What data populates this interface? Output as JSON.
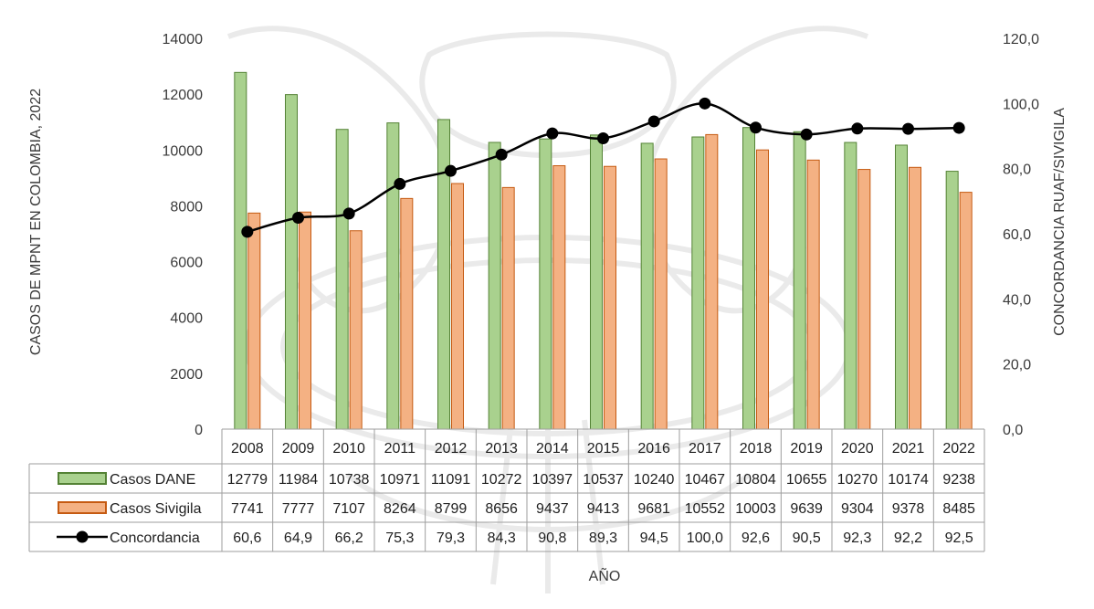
{
  "colors": {
    "dane_fill": "#A9D18E",
    "dane_stroke": "#548235",
    "sivigila_fill": "#F4B183",
    "sivigila_stroke": "#C55A11",
    "line": "#000000",
    "watermark": "#d9d9d9",
    "grid": "#9e9e9e"
  },
  "watermark": {
    "icon": "crest-watermark-icon"
  },
  "chart_data": {
    "type": "bar",
    "categories": [
      "2008",
      "2009",
      "2010",
      "2011",
      "2012",
      "2013",
      "2014",
      "2015",
      "2016",
      "2017",
      "2018",
      "2019",
      "2020",
      "2021",
      "2022"
    ],
    "series": [
      {
        "name": "Casos DANE",
        "kind": "bar",
        "axis": "left",
        "values": [
          12779,
          11984,
          10738,
          10971,
          11091,
          10272,
          10397,
          10537,
          10240,
          10467,
          10804,
          10655,
          10270,
          10174,
          9238
        ],
        "labels": [
          "12779",
          "11984",
          "10738",
          "10971",
          "11091",
          "10272",
          "10397",
          "10537",
          "10240",
          "10467",
          "10804",
          "10655",
          "10270",
          "10174",
          "9238"
        ]
      },
      {
        "name": "Casos Sivigila",
        "kind": "bar",
        "axis": "left",
        "values": [
          7741,
          7777,
          7107,
          8264,
          8799,
          8656,
          9437,
          9413,
          9681,
          10552,
          10003,
          9639,
          9304,
          9378,
          8485
        ],
        "labels": [
          "7741",
          "7777",
          "7107",
          "8264",
          "8799",
          "8656",
          "9437",
          "9413",
          "9681",
          "10552",
          "10003",
          "9639",
          "9304",
          "9378",
          "8485"
        ]
      },
      {
        "name": "Concordancia",
        "kind": "line",
        "axis": "right",
        "values": [
          60.6,
          64.9,
          66.2,
          75.3,
          79.3,
          84.3,
          90.8,
          89.3,
          94.5,
          100.0,
          92.6,
          90.5,
          92.3,
          92.2,
          92.5
        ],
        "labels": [
          "60,6",
          "64,9",
          "66,2",
          "75,3",
          "79,3",
          "84,3",
          "90,8",
          "89,3",
          "94,5",
          "100,0",
          "92,6",
          "90,5",
          "92,3",
          "92,2",
          "92,5"
        ]
      }
    ],
    "xlabel": "AÑO",
    "ylabel": "CASOS DE MPNT EN COLOMBIA, 2022",
    "ylabel_right": "CONCORDANCIA RUAF/SIVIGILA",
    "ylim": [
      0,
      14000
    ],
    "yticks": [
      "0",
      "2000",
      "4000",
      "6000",
      "8000",
      "10000",
      "12000",
      "14000"
    ],
    "ylim_right": [
      0,
      120
    ],
    "yticks_right": [
      "0,0",
      "20,0",
      "40,0",
      "60,0",
      "80,0",
      "100,0",
      "120,0"
    ],
    "grid": false,
    "legend": "data-table"
  }
}
